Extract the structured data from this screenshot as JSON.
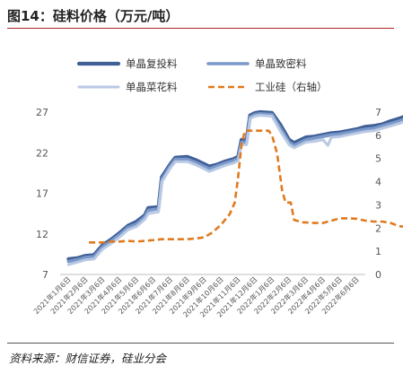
{
  "title": "图14：硅料价格（万元/吨）",
  "source": "资料来源：财信证券，硅业分会",
  "chart_data": {
    "type": "line",
    "title": "",
    "xlabel": "",
    "ylabel": "",
    "ylim": [
      7,
      27
    ],
    "y_ticks": [
      7,
      12,
      17,
      22,
      27
    ],
    "y2lim": [
      0,
      7
    ],
    "y2_ticks": [
      0,
      1,
      2,
      3,
      4,
      5,
      6,
      7
    ],
    "legend_position": "top",
    "grid": false,
    "x_tick_labels": [
      "2021年1月6日",
      "2021年2月6日",
      "2021年3月6日",
      "2021年4月6日",
      "2021年5月6日",
      "2021年6月6日",
      "2021年7月6日",
      "2021年8月6日",
      "2021年9月6日",
      "2021年10月6日",
      "2021年11月6日",
      "2021年12月6日",
      "2022年1月6日",
      "2022年2月6日",
      "2022年3月6日",
      "2022年4月6日",
      "2022年5月6日",
      "2022年6月6日"
    ],
    "series": [
      {
        "name": "单晶复投料",
        "axis": "left",
        "color": "#3f5f96",
        "points": [
          [
            0,
            8.9
          ],
          [
            0.5,
            9.0
          ],
          [
            1,
            9.3
          ],
          [
            1.5,
            9.4
          ],
          [
            2,
            10.6
          ],
          [
            2.5,
            11.3
          ],
          [
            3,
            12.1
          ],
          [
            3.5,
            13.0
          ],
          [
            4,
            13.5
          ],
          [
            4.5,
            14.3
          ],
          [
            4.7,
            15.2
          ],
          [
            5.3,
            15.3
          ],
          [
            5.5,
            19.0
          ],
          [
            6,
            20.6
          ],
          [
            6.3,
            21.4
          ],
          [
            7,
            21.5
          ],
          [
            7.5,
            21.1
          ],
          [
            8,
            20.6
          ],
          [
            8.3,
            20.3
          ],
          [
            8.7,
            20.5
          ],
          [
            9.2,
            20.9
          ],
          [
            9.7,
            21.2
          ],
          [
            10,
            21.5
          ],
          [
            10.2,
            23.6
          ],
          [
            10.5,
            23.6
          ],
          [
            10.7,
            26.6
          ],
          [
            11,
            26.9
          ],
          [
            11.3,
            27.0
          ],
          [
            12,
            26.9
          ],
          [
            12.5,
            25.4
          ],
          [
            13,
            23.6
          ],
          [
            13.3,
            23.2
          ],
          [
            13.7,
            23.6
          ],
          [
            14,
            23.9
          ],
          [
            14.5,
            24.0
          ],
          [
            15,
            24.2
          ],
          [
            15.5,
            24.4
          ],
          [
            16,
            24.5
          ],
          [
            16.5,
            24.7
          ],
          [
            17,
            24.9
          ],
          [
            17.5,
            25.2
          ],
          [
            18,
            25.3
          ],
          [
            18.5,
            25.5
          ],
          [
            19,
            25.9
          ],
          [
            19.5,
            26.2
          ],
          [
            20,
            26.6
          ],
          [
            20.3,
            26.8
          ]
        ]
      },
      {
        "name": "单晶致密料",
        "axis": "left",
        "color": "#7a98c9",
        "points": [
          [
            0,
            8.6
          ],
          [
            0.5,
            8.8
          ],
          [
            1,
            9.1
          ],
          [
            1.5,
            9.2
          ],
          [
            2,
            10.4
          ],
          [
            2.5,
            11.1
          ],
          [
            3,
            11.9
          ],
          [
            3.5,
            12.8
          ],
          [
            4,
            13.2
          ],
          [
            4.5,
            14.1
          ],
          [
            4.7,
            14.9
          ],
          [
            5.3,
            15.1
          ],
          [
            5.5,
            18.7
          ],
          [
            6,
            20.4
          ],
          [
            6.3,
            21.2
          ],
          [
            7,
            21.2
          ],
          [
            7.5,
            20.8
          ],
          [
            8,
            20.3
          ],
          [
            8.3,
            20.0
          ],
          [
            8.7,
            20.3
          ],
          [
            9.2,
            20.7
          ],
          [
            9.7,
            21.0
          ],
          [
            10,
            21.3
          ],
          [
            10.2,
            23.3
          ],
          [
            10.5,
            23.3
          ],
          [
            10.7,
            26.4
          ],
          [
            11,
            26.7
          ],
          [
            11.3,
            26.8
          ],
          [
            12,
            26.7
          ],
          [
            12.5,
            25.0
          ],
          [
            13,
            23.3
          ],
          [
            13.3,
            22.9
          ],
          [
            13.7,
            23.3
          ],
          [
            14,
            23.6
          ],
          [
            14.5,
            23.8
          ],
          [
            15,
            24.0
          ],
          [
            15.5,
            24.2
          ],
          [
            16,
            24.3
          ],
          [
            16.5,
            24.5
          ],
          [
            17,
            24.7
          ],
          [
            17.5,
            24.9
          ],
          [
            18,
            25.0
          ],
          [
            18.5,
            25.3
          ],
          [
            19,
            25.6
          ],
          [
            19.5,
            25.9
          ],
          [
            20,
            26.3
          ],
          [
            20.3,
            26.5
          ]
        ]
      },
      {
        "name": "单晶菜花料",
        "axis": "left",
        "color": "#b9c9e4",
        "points": [
          [
            0,
            8.2
          ],
          [
            0.5,
            8.5
          ],
          [
            1,
            8.8
          ],
          [
            1.5,
            8.9
          ],
          [
            2,
            10.1
          ],
          [
            2.5,
            10.8
          ],
          [
            3,
            11.6
          ],
          [
            3.5,
            12.5
          ],
          [
            4,
            12.9
          ],
          [
            4.5,
            13.8
          ],
          [
            4.7,
            14.5
          ],
          [
            5.3,
            14.7
          ],
          [
            5.5,
            18.4
          ],
          [
            6,
            20.1
          ],
          [
            6.3,
            20.9
          ],
          [
            7,
            20.9
          ],
          [
            7.5,
            20.5
          ],
          [
            8,
            20.0
          ],
          [
            8.3,
            19.7
          ],
          [
            8.7,
            20.0
          ],
          [
            9.2,
            20.4
          ],
          [
            9.7,
            20.7
          ],
          [
            10,
            21.0
          ],
          [
            10.2,
            23.0
          ],
          [
            10.5,
            23.0
          ],
          [
            10.7,
            26.2
          ],
          [
            11,
            26.5
          ],
          [
            11.3,
            26.6
          ],
          [
            12,
            26.5
          ],
          [
            12.5,
            24.6
          ],
          [
            13,
            23.0
          ],
          [
            13.3,
            22.6
          ],
          [
            13.7,
            23.0
          ],
          [
            14,
            23.3
          ],
          [
            14.5,
            23.4
          ],
          [
            15,
            23.6
          ],
          [
            15.3,
            22.9
          ],
          [
            15.5,
            23.9
          ],
          [
            16,
            24.0
          ],
          [
            16.5,
            24.2
          ],
          [
            17,
            24.4
          ],
          [
            17.5,
            24.6
          ],
          [
            18,
            24.7
          ],
          [
            18.5,
            25.0
          ],
          [
            19,
            25.3
          ],
          [
            19.5,
            25.6
          ],
          [
            20,
            26.0
          ],
          [
            20.3,
            26.2
          ]
        ]
      },
      {
        "name": "工业硅（右轴）",
        "axis": "right",
        "color": "#e07a1f",
        "dashed": true,
        "points": [
          [
            1.2,
            1.38
          ],
          [
            2,
            1.38
          ],
          [
            2.5,
            1.42
          ],
          [
            3,
            1.42
          ],
          [
            3.5,
            1.45
          ],
          [
            4,
            1.42
          ],
          [
            4.5,
            1.45
          ],
          [
            5,
            1.48
          ],
          [
            5.5,
            1.52
          ],
          [
            6,
            1.52
          ],
          [
            6.5,
            1.52
          ],
          [
            7,
            1.52
          ],
          [
            7.5,
            1.55
          ],
          [
            8,
            1.6
          ],
          [
            8.5,
            1.82
          ],
          [
            9,
            2.15
          ],
          [
            9.5,
            2.6
          ],
          [
            9.8,
            3.1
          ],
          [
            10,
            4.2
          ],
          [
            10.2,
            5.6
          ],
          [
            10.4,
            6.2
          ],
          [
            11,
            6.2
          ],
          [
            11.8,
            6.2
          ],
          [
            12,
            6.0
          ],
          [
            12.3,
            5.2
          ],
          [
            12.6,
            3.6
          ],
          [
            12.8,
            3.1
          ],
          [
            13.1,
            3.1
          ],
          [
            13.3,
            2.35
          ],
          [
            13.8,
            2.25
          ],
          [
            14.5,
            2.22
          ],
          [
            15,
            2.22
          ],
          [
            15.5,
            2.32
          ],
          [
            16,
            2.42
          ],
          [
            16.5,
            2.42
          ],
          [
            17,
            2.4
          ],
          [
            17.5,
            2.32
          ],
          [
            18,
            2.28
          ],
          [
            18.5,
            2.28
          ],
          [
            19,
            2.22
          ],
          [
            19.5,
            2.08
          ],
          [
            20,
            2.05
          ],
          [
            20.3,
            2.1
          ]
        ]
      }
    ]
  }
}
